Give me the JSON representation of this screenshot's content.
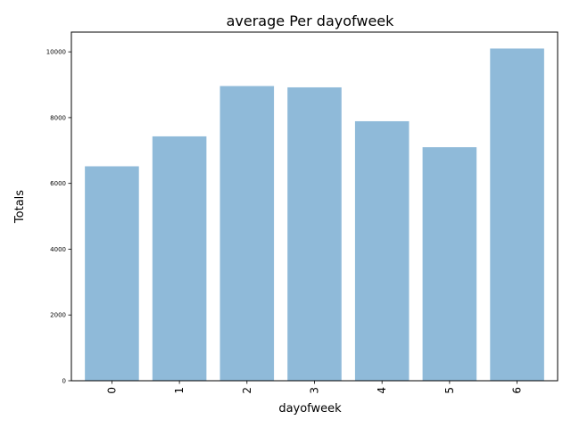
{
  "chart_data": {
    "type": "bar",
    "title": "average Per dayofweek",
    "xlabel": "dayofweek",
    "ylabel": "Totals",
    "categories": [
      "0",
      "1",
      "2",
      "3",
      "4",
      "5",
      "6"
    ],
    "values": [
      6520,
      7430,
      8960,
      8920,
      7890,
      7100,
      10100
    ],
    "yticks": [
      0,
      2000,
      4000,
      6000,
      8000,
      10000
    ],
    "ytick_labels": [
      "0",
      "2000",
      "4000",
      "6000",
      "8000",
      "10000"
    ],
    "ylim": [
      0,
      10600
    ],
    "bar_color": "#8fbad9",
    "grid": false,
    "xtick_rotation": "vertical"
  }
}
